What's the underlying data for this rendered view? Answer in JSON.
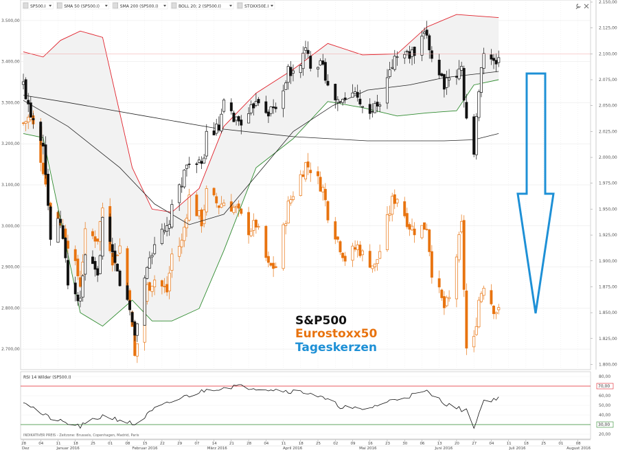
{
  "toolbar": {
    "items": [
      {
        "label": "SP500.I",
        "icon": "dropdown-arrow"
      },
      {
        "label": "SMA 50 (SP500.I)",
        "icon": "dropdown-arrow"
      },
      {
        "label": "SMA 200 (SP500.I)",
        "icon": "dropdown-arrow"
      },
      {
        "label": "BOLL 20; 2 (SP500.I)",
        "icon": "dropdown-arrow"
      },
      {
        "label": "STOXX50E.I",
        "icon": "dropdown-arrow",
        "color": "#e8730f"
      }
    ],
    "right_icons": [
      "wrench-icon",
      "close-icon"
    ]
  },
  "colors": {
    "sp500": "#111111",
    "stoxx": "#e8730f",
    "boll_upper": "#e0202a",
    "boll_lower": "#2e8b2e",
    "boll_fill": "#f2f2f2",
    "arrow": "#1e90d6",
    "rsi_line": "#111111",
    "rsi_upper": "#e0202a",
    "rsi_lower": "#2e8b2e"
  },
  "annotation": {
    "line1": "S&P500",
    "line2": "Eurostoxx50",
    "line3": "Tageskerzen"
  },
  "rsi_panel": {
    "title": "RSI 14 Wilder (SP500.I)",
    "source_text": "INDIKATIVER PREIS - Zeitzone: Brussels, Copenhagen, Madrid, Paris",
    "markers": {
      "upper": "70,00",
      "lower": "30,00"
    }
  },
  "chart_data": [
    {
      "type": "candlestick",
      "name": "price-panel",
      "left_axis": {
        "labels": [
          "3.500,00",
          "3.400,00",
          "3.300,00",
          "3.200,00",
          "3.100,00",
          "3.000,00",
          "2.900,00",
          "2.800,00",
          "2.700,00"
        ],
        "range": [
          2650,
          3550
        ]
      },
      "right_axis": {
        "labels": [
          "2.150,00",
          "2.125,00",
          "2.100,00",
          "2.075,00",
          "2.050,00",
          "2.025,00",
          "2.000,00",
          "1.975,00",
          "1.950,00",
          "1.925,00",
          "1.900,00",
          "1.875,00",
          "1.850,00",
          "1.825,00",
          "1.800,00"
        ],
        "range": [
          1795,
          2152
        ]
      },
      "x_range": [
        "2015-12-28",
        "2016-08-12"
      ],
      "reference_line_right": 2100,
      "sp500_close_points": [
        [
          "2015-12-28",
          2070
        ],
        [
          "2015-12-31",
          2044
        ],
        [
          "2016-01-05",
          2016
        ],
        [
          "2016-01-08",
          1922
        ],
        [
          "2016-01-12",
          1939
        ],
        [
          "2016-01-15",
          1880
        ],
        [
          "2016-01-20",
          1859
        ],
        [
          "2016-01-22",
          1906
        ],
        [
          "2016-01-27",
          1882
        ],
        [
          "2016-01-29",
          1940
        ],
        [
          "2016-02-02",
          1903
        ],
        [
          "2016-02-05",
          1880
        ],
        [
          "2016-02-09",
          1852
        ],
        [
          "2016-02-11",
          1829
        ],
        [
          "2016-02-16",
          1895
        ],
        [
          "2016-02-19",
          1918
        ],
        [
          "2016-02-24",
          1929
        ],
        [
          "2016-02-26",
          1948
        ],
        [
          "2016-03-01",
          1978
        ],
        [
          "2016-03-04",
          1999
        ],
        [
          "2016-03-09",
          1989
        ],
        [
          "2016-03-11",
          2022
        ],
        [
          "2016-03-16",
          2027
        ],
        [
          "2016-03-18",
          2049
        ],
        [
          "2016-03-23",
          2036
        ],
        [
          "2016-03-28",
          2037
        ],
        [
          "2016-03-31",
          2059
        ],
        [
          "2016-04-05",
          2045
        ],
        [
          "2016-04-08",
          2047
        ],
        [
          "2016-04-13",
          2082
        ],
        [
          "2016-04-15",
          2080
        ],
        [
          "2016-04-20",
          2102
        ],
        [
          "2016-04-22",
          2091
        ],
        [
          "2016-04-27",
          2095
        ],
        [
          "2016-04-29",
          2065
        ],
        [
          "2016-05-04",
          2051
        ],
        [
          "2016-05-06",
          2057
        ],
        [
          "2016-05-11",
          2064
        ],
        [
          "2016-05-13",
          2046
        ],
        [
          "2016-05-18",
          2047
        ],
        [
          "2016-05-20",
          2052
        ],
        [
          "2016-05-25",
          2090
        ],
        [
          "2016-05-27",
          2099
        ],
        [
          "2016-06-01",
          2099
        ],
        [
          "2016-06-03",
          2099
        ],
        [
          "2016-06-08",
          2119
        ],
        [
          "2016-06-10",
          2096
        ],
        [
          "2016-06-15",
          2072
        ],
        [
          "2016-06-17",
          2071
        ],
        [
          "2016-06-22",
          2085
        ],
        [
          "2016-06-24",
          2037
        ],
        [
          "2016-06-27",
          2000
        ],
        [
          "2016-06-29",
          2070
        ],
        [
          "2016-07-01",
          2102
        ],
        [
          "2016-07-05",
          2088
        ],
        [
          "2016-07-07",
          2097
        ]
      ],
      "stoxx50_close_points": [
        [
          "2015-12-28",
          3250
        ],
        [
          "2015-12-31",
          3268
        ],
        [
          "2016-01-05",
          3139
        ],
        [
          "2016-01-08",
          3034
        ],
        [
          "2016-01-12",
          3010
        ],
        [
          "2016-01-15",
          2960
        ],
        [
          "2016-01-20",
          2860
        ],
        [
          "2016-01-22",
          2979
        ],
        [
          "2016-01-27",
          2970
        ],
        [
          "2016-01-29",
          3045
        ],
        [
          "2016-02-02",
          2920
        ],
        [
          "2016-02-05",
          2950
        ],
        [
          "2016-02-09",
          2810
        ],
        [
          "2016-02-11",
          2680
        ],
        [
          "2016-02-16",
          2850
        ],
        [
          "2016-02-19",
          2870
        ],
        [
          "2016-02-24",
          2840
        ],
        [
          "2016-02-26",
          2930
        ],
        [
          "2016-03-01",
          2960
        ],
        [
          "2016-03-04",
          3070
        ],
        [
          "2016-03-09",
          3010
        ],
        [
          "2016-03-11",
          3080
        ],
        [
          "2016-03-16",
          3050
        ],
        [
          "2016-03-18",
          3059
        ],
        [
          "2016-03-23",
          3040
        ],
        [
          "2016-03-28",
          2990
        ],
        [
          "2016-03-31",
          3004
        ],
        [
          "2016-04-05",
          2900
        ],
        [
          "2016-04-08",
          2900
        ],
        [
          "2016-04-13",
          3050
        ],
        [
          "2016-04-15",
          3080
        ],
        [
          "2016-04-20",
          3150
        ],
        [
          "2016-04-22",
          3140
        ],
        [
          "2016-04-27",
          3090
        ],
        [
          "2016-04-29",
          3030
        ],
        [
          "2016-05-04",
          2950
        ],
        [
          "2016-05-06",
          2920
        ],
        [
          "2016-05-11",
          2950
        ],
        [
          "2016-05-13",
          2930
        ],
        [
          "2016-05-18",
          2900
        ],
        [
          "2016-05-20",
          2940
        ],
        [
          "2016-05-25",
          3060
        ],
        [
          "2016-05-27",
          3070
        ],
        [
          "2016-06-01",
          3000
        ],
        [
          "2016-06-03",
          2990
        ],
        [
          "2016-06-08",
          3000
        ],
        [
          "2016-06-10",
          2890
        ],
        [
          "2016-06-15",
          2800
        ],
        [
          "2016-06-17",
          2820
        ],
        [
          "2016-06-22",
          3000
        ],
        [
          "2016-06-24",
          2700
        ],
        [
          "2016-06-27",
          2720
        ],
        [
          "2016-06-29",
          2820
        ],
        [
          "2016-07-01",
          2860
        ],
        [
          "2016-07-05",
          2800
        ],
        [
          "2016-07-07",
          2790
        ]
      ],
      "sma50_right": [
        [
          "2015-12-28",
          2055
        ],
        [
          "2016-01-15",
          2030
        ],
        [
          "2016-02-05",
          1990
        ],
        [
          "2016-02-19",
          1955
        ],
        [
          "2016-03-04",
          1935
        ],
        [
          "2016-03-18",
          1945
        ],
        [
          "2016-04-01",
          1985
        ],
        [
          "2016-04-15",
          2025
        ],
        [
          "2016-05-01",
          2050
        ],
        [
          "2016-05-15",
          2065
        ],
        [
          "2016-06-01",
          2070
        ],
        [
          "2016-06-15",
          2077
        ],
        [
          "2016-07-07",
          2083
        ]
      ],
      "sma200_right": [
        [
          "2015-12-28",
          2060
        ],
        [
          "2016-01-15",
          2053
        ],
        [
          "2016-02-15",
          2040
        ],
        [
          "2016-03-15",
          2028
        ],
        [
          "2016-04-15",
          2020
        ],
        [
          "2016-05-15",
          2016
        ],
        [
          "2016-06-15",
          2016
        ],
        [
          "2016-06-27",
          2017
        ],
        [
          "2016-07-07",
          2023
        ]
      ],
      "boll_upper_right": [
        [
          "2015-12-28",
          2102
        ],
        [
          "2016-01-05",
          2097
        ],
        [
          "2016-01-12",
          2113
        ],
        [
          "2016-01-20",
          2122
        ],
        [
          "2016-01-29",
          2116
        ],
        [
          "2016-02-10",
          1990
        ],
        [
          "2016-02-18",
          1950
        ],
        [
          "2016-02-26",
          1947
        ],
        [
          "2016-03-08",
          1970
        ],
        [
          "2016-03-18",
          2030
        ],
        [
          "2016-03-31",
          2062
        ],
        [
          "2016-04-15",
          2085
        ],
        [
          "2016-04-29",
          2110
        ],
        [
          "2016-05-13",
          2099
        ],
        [
          "2016-05-27",
          2100
        ],
        [
          "2016-06-08",
          2126
        ],
        [
          "2016-06-20",
          2138
        ],
        [
          "2016-07-07",
          2135
        ]
      ],
      "boll_lower_right": [
        [
          "2015-12-28",
          2023
        ],
        [
          "2016-01-05",
          2019
        ],
        [
          "2016-01-12",
          1940
        ],
        [
          "2016-01-20",
          1850
        ],
        [
          "2016-01-29",
          1837
        ],
        [
          "2016-02-10",
          1862
        ],
        [
          "2016-02-18",
          1842
        ],
        [
          "2016-02-26",
          1842
        ],
        [
          "2016-03-08",
          1854
        ],
        [
          "2016-03-18",
          1910
        ],
        [
          "2016-03-31",
          1990
        ],
        [
          "2016-04-15",
          2018
        ],
        [
          "2016-04-29",
          2054
        ],
        [
          "2016-05-13",
          2048
        ],
        [
          "2016-05-27",
          2040
        ],
        [
          "2016-06-08",
          2043
        ],
        [
          "2016-06-20",
          2045
        ],
        [
          "2016-06-27",
          2070
        ],
        [
          "2016-07-07",
          2075
        ]
      ]
    },
    {
      "type": "line",
      "name": "rsi-panel",
      "series_title": "RSI 14 Wilder (SP500.I)",
      "axis": {
        "labels": [
          "80,00",
          "60,00",
          "50,00",
          "40,00",
          "30,00",
          "20,00"
        ],
        "range": [
          15,
          85
        ]
      },
      "bands": [
        70,
        30
      ],
      "points": [
        [
          "2015-12-28",
          55
        ],
        [
          "2016-01-05",
          40
        ],
        [
          "2016-01-12",
          33
        ],
        [
          "2016-01-20",
          28
        ],
        [
          "2016-01-29",
          39
        ],
        [
          "2016-02-05",
          35
        ],
        [
          "2016-02-11",
          30
        ],
        [
          "2016-02-19",
          46
        ],
        [
          "2016-03-01",
          58
        ],
        [
          "2016-03-11",
          66
        ],
        [
          "2016-03-22",
          70
        ],
        [
          "2016-04-01",
          68
        ],
        [
          "2016-04-13",
          65
        ],
        [
          "2016-04-22",
          63
        ],
        [
          "2016-05-04",
          49
        ],
        [
          "2016-05-13",
          45
        ],
        [
          "2016-05-27",
          57
        ],
        [
          "2016-06-08",
          64
        ],
        [
          "2016-06-17",
          50
        ],
        [
          "2016-06-24",
          44
        ],
        [
          "2016-06-27",
          28
        ],
        [
          "2016-07-01",
          55
        ],
        [
          "2016-07-07",
          57
        ]
      ]
    }
  ],
  "x_axis": {
    "day_labels": [
      {
        "date": "2015-12-28",
        "label": "28"
      },
      {
        "date": "2016-01-04",
        "label": "04"
      },
      {
        "date": "2016-01-11",
        "label": "11"
      },
      {
        "date": "2016-01-18",
        "label": "18"
      },
      {
        "date": "2016-01-25",
        "label": "25"
      },
      {
        "date": "2016-02-01",
        "label": "01"
      },
      {
        "date": "2016-02-08",
        "label": "08"
      },
      {
        "date": "2016-02-15",
        "label": "15"
      },
      {
        "date": "2016-02-22",
        "label": "22"
      },
      {
        "date": "2016-02-29",
        "label": "29"
      },
      {
        "date": "2016-03-07",
        "label": "07"
      },
      {
        "date": "2016-03-14",
        "label": "14"
      },
      {
        "date": "2016-03-21",
        "label": "21"
      },
      {
        "date": "2016-03-28",
        "label": "28"
      },
      {
        "date": "2016-04-04",
        "label": "04"
      },
      {
        "date": "2016-04-11",
        "label": "11"
      },
      {
        "date": "2016-04-18",
        "label": "18"
      },
      {
        "date": "2016-04-25",
        "label": "25"
      },
      {
        "date": "2016-05-02",
        "label": "02"
      },
      {
        "date": "2016-05-09",
        "label": "09"
      },
      {
        "date": "2016-05-16",
        "label": "16"
      },
      {
        "date": "2016-05-23",
        "label": "23"
      },
      {
        "date": "2016-05-30",
        "label": "30"
      },
      {
        "date": "2016-06-06",
        "label": "06"
      },
      {
        "date": "2016-06-13",
        "label": "13"
      },
      {
        "date": "2016-06-20",
        "label": "20"
      },
      {
        "date": "2016-06-27",
        "label": "27"
      },
      {
        "date": "2016-07-04",
        "label": "04"
      },
      {
        "date": "2016-07-11",
        "label": "11"
      },
      {
        "date": "2016-07-18",
        "label": "18"
      },
      {
        "date": "2016-07-25",
        "label": "25"
      },
      {
        "date": "2016-08-01",
        "label": "01"
      },
      {
        "date": "2016-08-08",
        "label": "08"
      }
    ],
    "month_labels": [
      {
        "date": "2015-12-28",
        "label": "Dez"
      },
      {
        "date": "2016-01-15",
        "label": "Januar 2016"
      },
      {
        "date": "2016-02-15",
        "label": "Februar 2016"
      },
      {
        "date": "2016-03-15",
        "label": "März 2016"
      },
      {
        "date": "2016-04-15",
        "label": "April 2016"
      },
      {
        "date": "2016-05-15",
        "label": "Mai 2016"
      },
      {
        "date": "2016-06-15",
        "label": "Juni 2016"
      },
      {
        "date": "2016-07-15",
        "label": "Juli 2016"
      },
      {
        "date": "2016-08-08",
        "label": "August 2016"
      }
    ]
  }
}
